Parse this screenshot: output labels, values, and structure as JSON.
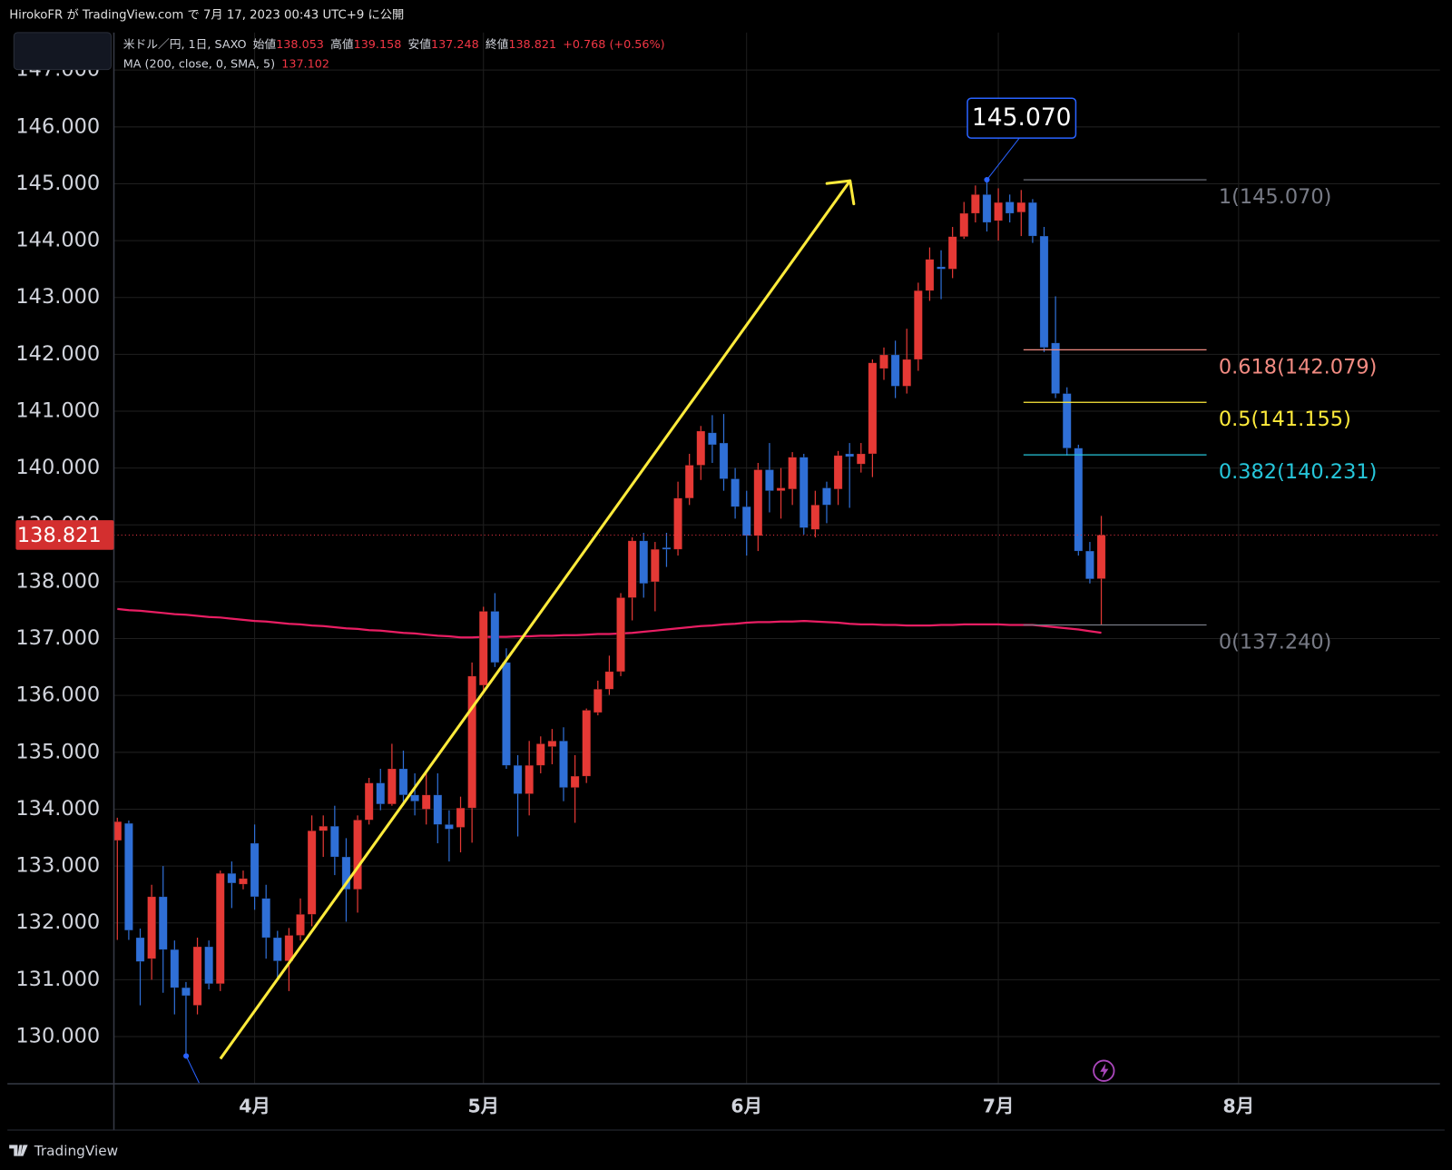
{
  "header": {
    "text": "HirokoFR が TradingView.com で 7月 17, 2023 00:43 UTC+9 に公開"
  },
  "brand": "TradingView",
  "chart_data": {
    "type": "candlestick",
    "symbol": "米ドル／円, 1日, SAXO",
    "ohlc_labels": [
      "始値",
      "高値",
      "安値",
      "終値"
    ],
    "change_label": "+0.768 (+0.56%)",
    "up_color": "#e53935",
    "down_color": "#2f6fd6",
    "open": [
      133.45,
      133.75,
      131.74,
      131.37,
      132.46,
      131.53,
      130.86,
      130.55,
      131.58,
      130.93,
      132.87,
      132.68,
      133.4,
      132.43,
      131.74,
      131.33,
      131.78,
      132.15,
      133.62,
      133.7,
      133.16,
      132.59,
      133.81,
      134.46,
      134.09,
      134.71,
      134.25,
      134.0,
      134.25,
      133.73,
      133.68,
      134.02,
      136.18,
      137.48,
      136.58,
      134.77,
      134.27,
      134.77,
      135.1,
      135.2,
      134.38,
      134.58,
      135.7,
      136.11,
      136.42,
      137.72,
      138.72,
      138.0,
      138.6,
      138.57,
      139.47,
      140.05,
      140.62,
      140.44,
      139.81,
      139.32,
      138.81,
      139.97,
      139.6,
      139.63,
      140.19,
      138.92,
      139.65,
      139.63,
      140.25,
      140.07,
      140.25,
      141.75,
      141.99,
      141.44,
      141.91,
      143.12,
      143.54,
      143.5,
      144.07,
      144.48,
      144.81,
      144.35,
      144.68,
      144.5,
      144.67,
      144.08,
      142.2,
      141.31,
      140.35,
      138.54,
      138.053
    ],
    "high": [
      133.85,
      133.8,
      131.9,
      132.67,
      133.0,
      131.69,
      130.96,
      131.74,
      131.69,
      132.92,
      133.08,
      132.92,
      133.73,
      132.67,
      131.86,
      131.91,
      132.43,
      133.89,
      133.89,
      134.06,
      133.49,
      133.89,
      134.55,
      134.71,
      135.15,
      135.03,
      134.63,
      134.68,
      134.63,
      133.98,
      134.22,
      136.58,
      137.56,
      137.8,
      136.83,
      134.95,
      135.2,
      135.28,
      135.41,
      135.44,
      134.95,
      135.77,
      136.26,
      136.7,
      137.8,
      138.78,
      138.86,
      138.7,
      138.86,
      139.76,
      140.25,
      140.74,
      140.93,
      140.95,
      140.0,
      139.6,
      140.09,
      140.44,
      140.0,
      140.28,
      140.25,
      139.6,
      139.76,
      140.3,
      140.44,
      140.44,
      141.91,
      142.12,
      142.24,
      142.45,
      143.26,
      143.88,
      143.83,
      144.24,
      144.68,
      144.97,
      145.07,
      144.92,
      144.81,
      144.89,
      144.73,
      144.24,
      143.02,
      141.42,
      140.41,
      138.7,
      139.158
    ],
    "low": [
      131.7,
      131.7,
      130.55,
      131.0,
      130.77,
      130.39,
      129.66,
      130.39,
      130.83,
      130.8,
      132.26,
      132.59,
      132.23,
      131.37,
      131.04,
      130.8,
      131.69,
      131.94,
      133.16,
      132.84,
      132.02,
      132.18,
      133.73,
      133.98,
      134.06,
      134.06,
      133.89,
      133.73,
      133.4,
      133.08,
      133.24,
      133.41,
      136.09,
      136.5,
      134.71,
      133.52,
      133.89,
      134.63,
      134.79,
      134.14,
      133.76,
      134.46,
      135.65,
      136.01,
      136.34,
      137.32,
      137.72,
      137.48,
      138.26,
      138.46,
      139.35,
      139.79,
      140.09,
      139.6,
      139.11,
      138.46,
      138.54,
      139.22,
      139.11,
      139.35,
      138.83,
      138.78,
      139.03,
      139.35,
      139.3,
      139.92,
      139.84,
      141.55,
      141.23,
      141.31,
      141.71,
      142.94,
      142.97,
      143.34,
      144.03,
      144.32,
      144.16,
      144.0,
      144.32,
      144.08,
      143.96,
      142.04,
      141.23,
      140.22,
      138.46,
      137.97,
      137.248
    ],
    "close": [
      133.78,
      131.87,
      131.32,
      132.46,
      131.53,
      130.86,
      130.72,
      131.58,
      130.93,
      132.87,
      132.7,
      132.78,
      132.46,
      131.74,
      131.33,
      131.78,
      132.15,
      133.62,
      133.7,
      133.16,
      132.59,
      133.81,
      134.46,
      134.09,
      134.71,
      134.25,
      134.14,
      134.25,
      133.73,
      133.65,
      134.02,
      136.34,
      137.48,
      136.58,
      134.77,
      134.27,
      134.77,
      135.15,
      135.2,
      134.38,
      134.58,
      135.74,
      136.11,
      136.42,
      137.72,
      138.72,
      137.97,
      138.57,
      138.57,
      139.47,
      140.05,
      140.65,
      140.41,
      139.81,
      139.32,
      138.81,
      139.97,
      139.6,
      139.65,
      140.19,
      138.95,
      139.35,
      139.35,
      140.22,
      140.2,
      140.25,
      141.85,
      141.99,
      141.44,
      141.91,
      143.12,
      143.67,
      143.5,
      144.07,
      144.48,
      144.81,
      144.32,
      144.67,
      144.48,
      144.67,
      144.08,
      142.12,
      141.31,
      140.35,
      138.54,
      138.05,
      138.821
    ],
    "ma": {
      "name": "MA (200, close, 0, SMA, 5)",
      "color": "#e91e63",
      "values": [
        137.52,
        137.5,
        137.49,
        137.47,
        137.45,
        137.43,
        137.42,
        137.4,
        137.38,
        137.37,
        137.35,
        137.33,
        137.31,
        137.3,
        137.28,
        137.26,
        137.25,
        137.23,
        137.22,
        137.2,
        137.18,
        137.17,
        137.15,
        137.14,
        137.12,
        137.1,
        137.09,
        137.07,
        137.05,
        137.04,
        137.02,
        137.02,
        137.03,
        137.03,
        137.03,
        137.04,
        137.04,
        137.05,
        137.05,
        137.06,
        137.06,
        137.07,
        137.08,
        137.08,
        137.09,
        137.1,
        137.12,
        137.14,
        137.16,
        137.18,
        137.2,
        137.22,
        137.23,
        137.25,
        137.26,
        137.28,
        137.29,
        137.29,
        137.3,
        137.3,
        137.31,
        137.3,
        137.29,
        137.28,
        137.26,
        137.25,
        137.25,
        137.24,
        137.24,
        137.23,
        137.23,
        137.23,
        137.24,
        137.24,
        137.25,
        137.25,
        137.25,
        137.25,
        137.24,
        137.24,
        137.24,
        137.22,
        137.2,
        137.18,
        137.16,
        137.13,
        137.102
      ]
    },
    "legend_value_color": "#f23645",
    "peak_label": {
      "value": 145.07,
      "label": "145.070"
    },
    "fibonacci": {
      "levels": [
        {
          "price": 145.07,
          "label": "1(145.070)",
          "color": "#787b86"
        },
        {
          "price": 142.079,
          "label": "0.618(142.079)",
          "color": "#f28b82"
        },
        {
          "price": 141.155,
          "label": "0.5(141.155)",
          "color": "#ffeb3b"
        },
        {
          "price": 140.231,
          "label": "0.382(140.231)",
          "color": "#26c6da"
        },
        {
          "price": 137.24,
          "label": "0(137.240)",
          "color": "#787b86"
        }
      ]
    },
    "ylim": [
      129.17,
      147.66
    ],
    "yticks": [
      {
        "value": 130,
        "label": "130.000"
      },
      {
        "value": 131,
        "label": "131.000"
      },
      {
        "value": 132,
        "label": "132.000"
      },
      {
        "value": 133,
        "label": "133.000"
      },
      {
        "value": 134,
        "label": "134.000"
      },
      {
        "value": 135,
        "label": "135.000"
      },
      {
        "value": 136,
        "label": "136.000"
      },
      {
        "value": 137,
        "label": "137.000"
      },
      {
        "value": 138,
        "label": "138.000"
      },
      {
        "value": 139,
        "label": "139.000"
      },
      {
        "value": 140,
        "label": "140.000"
      },
      {
        "value": 141,
        "label": "141.000"
      },
      {
        "value": 142,
        "label": "142.000"
      },
      {
        "value": 143,
        "label": "143.000"
      },
      {
        "value": 144,
        "label": "144.000"
      },
      {
        "value": 145,
        "label": "145.000"
      },
      {
        "value": 146,
        "label": "146.000"
      },
      {
        "value": 147,
        "label": "147.000"
      }
    ],
    "xlim": [
      -0.3,
      115.6
    ],
    "xticks": [
      {
        "value": 12,
        "label": "4月"
      },
      {
        "value": 32,
        "label": "5月"
      },
      {
        "value": 55,
        "label": "6月"
      },
      {
        "value": 77,
        "label": "7月"
      },
      {
        "value": 98,
        "label": "8月"
      }
    ],
    "grid": true
  }
}
